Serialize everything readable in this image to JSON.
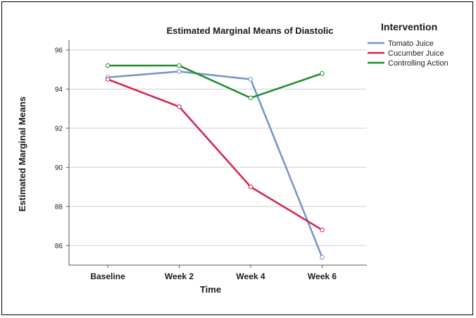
{
  "chart_data": {
    "type": "line",
    "title": "Estimated Marginal Means of Diastolic",
    "xlabel": "Time",
    "ylabel": "Estimated Marginal Means",
    "categories": [
      "Baseline",
      "Week 2",
      "Week 4",
      "Week 6"
    ],
    "ylim": [
      85,
      96.5
    ],
    "yticks": [
      86,
      88,
      90,
      92,
      94,
      96
    ],
    "grid": true,
    "legend_title": "Intervention",
    "legend_position": "right",
    "series": [
      {
        "name": "Tomato Juice",
        "color": "#7094c9",
        "values": [
          94.6,
          94.9,
          94.5,
          85.4
        ]
      },
      {
        "name": "Cucumber Juice",
        "color": "#d6204b",
        "values": [
          94.5,
          93.1,
          89.0,
          86.8
        ]
      },
      {
        "name": "Controlling Action",
        "color": "#1f8c2e",
        "values": [
          95.2,
          95.2,
          93.55,
          94.8
        ]
      }
    ]
  }
}
